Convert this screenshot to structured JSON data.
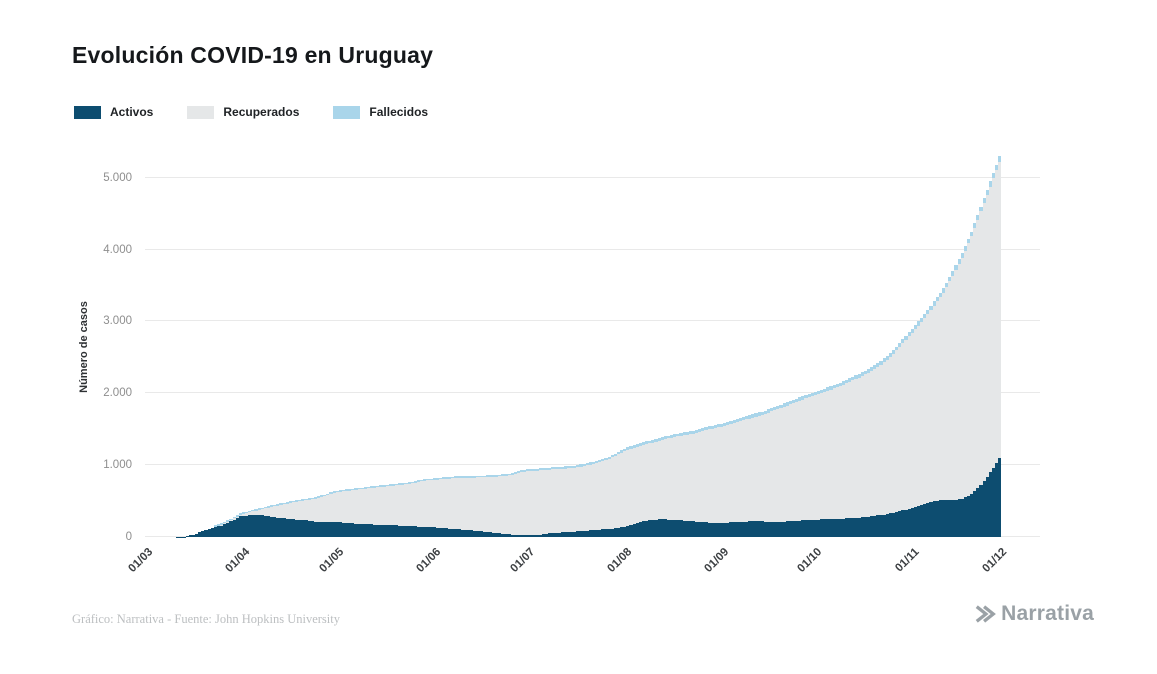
{
  "title": "Evolución COVID-19 en Uruguay",
  "footer": {
    "credit": "Gráfico: Narrativa - Fuente: John Hopkins University",
    "brand": "Narrativa"
  },
  "chart_data": {
    "type": "bar",
    "stacked": true,
    "title": "Evolución COVID-19 en Uruguay",
    "ylabel": "Número de casos",
    "legend_position": "top-left",
    "grid": true,
    "ylim": [
      0,
      5400
    ],
    "y_tick_values": [
      0,
      1000,
      2000,
      3000,
      4000,
      5000
    ],
    "y_ticks": [
      "0",
      "1.000",
      "2.000",
      "3.000",
      "4.000",
      "5.000"
    ],
    "x_ticks": [
      "01/03",
      "01/04",
      "01/05",
      "01/06",
      "01/07",
      "01/08",
      "01/09",
      "01/10",
      "01/11",
      "01/12"
    ],
    "x_tick_days": [
      0,
      31,
      61,
      92,
      122,
      153,
      184,
      214,
      245,
      275
    ],
    "x_start_label": "01/03",
    "sample_interval_days": 3,
    "series": [
      {
        "name": "Activos",
        "color": "#0d4d70",
        "values": [
          0,
          0,
          0,
          0,
          4,
          30,
          80,
          120,
          160,
          220,
          290,
          300,
          305,
          290,
          270,
          255,
          240,
          230,
          215,
          205,
          210,
          200,
          190,
          180,
          175,
          170,
          165,
          160,
          150,
          145,
          140,
          130,
          120,
          110,
          100,
          90,
          75,
          60,
          45,
          35,
          30,
          25,
          35,
          50,
          60,
          70,
          80,
          90,
          100,
          110,
          120,
          140,
          180,
          220,
          240,
          250,
          240,
          230,
          220,
          210,
          200,
          195,
          200,
          210,
          215,
          220,
          215,
          210,
          215,
          220,
          230,
          240,
          245,
          250,
          255,
          260,
          270,
          280,
          300,
          320,
          350,
          380,
          420,
          460,
          500,
          520,
          510,
          530,
          600,
          720,
          900,
          1100
        ]
      },
      {
        "name": "Recuperados",
        "color": "#e5e7e8",
        "values": [
          0,
          0,
          0,
          0,
          0,
          0,
          0,
          5,
          9,
          14,
          18,
          46,
          75,
          119,
          168,
          210,
          251,
          283,
          320,
          364,
          405,
          435,
          462,
          488,
          508,
          527,
          546,
          566,
          590,
          622,
          648,
          670,
          690,
          710,
          726,
          738,
          756,
          775,
          802,
          826,
          875,
          893,
          892,
          887,
          886,
          885,
          889,
          909,
          928,
          957,
          1007,
          1056,
          1065,
          1064,
          1074,
          1103,
          1142,
          1181,
          1210,
          1250,
          1299,
          1333,
          1357,
          1386,
          1421,
          1455,
          1500,
          1554,
          1599,
          1643,
          1683,
          1722,
          1757,
          1801,
          1845,
          1900,
          1949,
          2008,
          2067,
          2147,
          2246,
          2365,
          2474,
          2583,
          2722,
          2881,
          3129,
          3357,
          3585,
          3812,
          3978,
          4123
        ]
      },
      {
        "name": "Fallecidos",
        "color": "#a9d5ea",
        "values": [
          0,
          0,
          0,
          0,
          0,
          0,
          0,
          0,
          1,
          1,
          2,
          4,
          5,
          6,
          7,
          8,
          9,
          10,
          10,
          11,
          15,
          15,
          16,
          16,
          17,
          18,
          19,
          19,
          20,
          21,
          22,
          22,
          23,
          23,
          23,
          24,
          24,
          25,
          25,
          25,
          27,
          27,
          28,
          28,
          29,
          30,
          31,
          31,
          32,
          33,
          33,
          34,
          35,
          36,
          36,
          37,
          38,
          39,
          40,
          40,
          41,
          42,
          43,
          44,
          44,
          45,
          45,
          46,
          46,
          47,
          47,
          48,
          48,
          49,
          50,
          50,
          51,
          52,
          53,
          53,
          54,
          55,
          56,
          57,
          58,
          59,
          61,
          63,
          65,
          68,
          72,
          77
        ]
      }
    ]
  }
}
